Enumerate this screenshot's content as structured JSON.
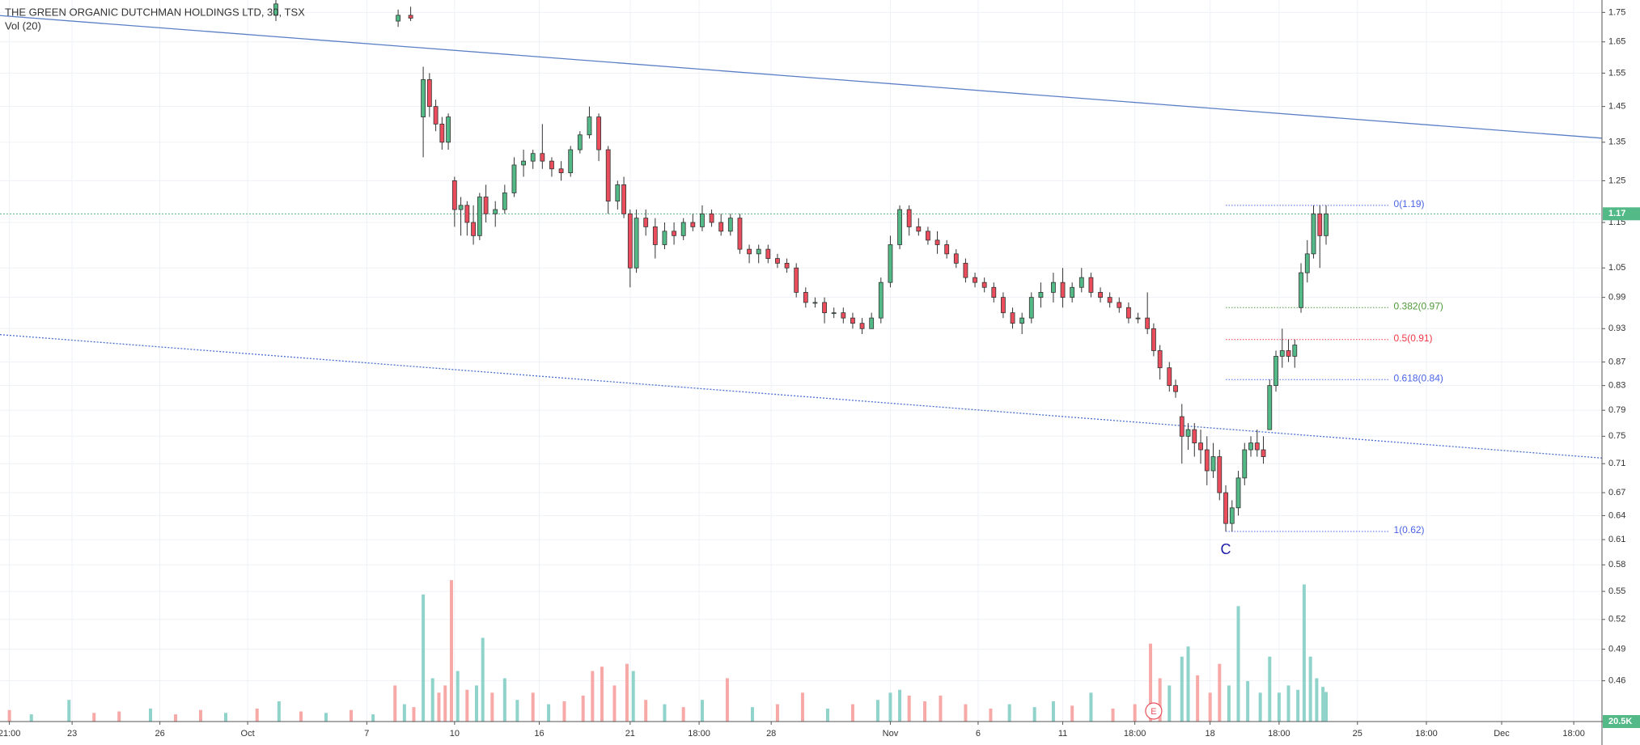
{
  "chart_data": {
    "type": "candlestick",
    "title": "THE GREEN ORGANIC DUTCHMAN HOLDINGS LTD, 30, TSX",
    "subtitle": "Vol (20)",
    "log_scale": true,
    "grid": true,
    "up_color": "#53b987",
    "down_color": "#eb4d5c",
    "ylim": [
      0.424,
      1.794
    ],
    "yticks": [
      1.75,
      1.65,
      1.55,
      1.45,
      1.35,
      1.25,
      1.15,
      1.05,
      0.99,
      0.93,
      0.87,
      0.83,
      0.79,
      0.75,
      0.71,
      0.67,
      0.64,
      0.61,
      0.58,
      0.55,
      0.52,
      0.49,
      0.46
    ],
    "xlim": [
      0,
      511
    ],
    "xticks": [
      {
        "value": 3,
        "label": "21:00"
      },
      {
        "value": 23,
        "label": "23"
      },
      {
        "value": 51,
        "label": "26"
      },
      {
        "value": 79,
        "label": "Oct"
      },
      {
        "value": 117,
        "label": "7"
      },
      {
        "value": 145,
        "label": "10"
      },
      {
        "value": 172,
        "label": "16"
      },
      {
        "value": 201,
        "label": "21"
      },
      {
        "value": 223,
        "label": "18:00"
      },
      {
        "value": 246,
        "label": "28"
      },
      {
        "value": 284,
        "label": "Nov"
      },
      {
        "value": 312,
        "label": "6"
      },
      {
        "value": 339,
        "label": "11"
      },
      {
        "value": 362,
        "label": "18:00"
      },
      {
        "value": 386,
        "label": "18"
      },
      {
        "value": 408,
        "label": "18:00"
      },
      {
        "value": 433,
        "label": "25"
      },
      {
        "value": 455,
        "label": "18:00"
      },
      {
        "value": 479,
        "label": "Dec"
      },
      {
        "value": 502,
        "label": "18:00"
      }
    ],
    "ohlc": [
      [
        88,
        1.74,
        1.8,
        1.72,
        1.78
      ],
      [
        127,
        1.72,
        1.76,
        1.7,
        1.74
      ],
      [
        131,
        1.74,
        1.77,
        1.72,
        1.73
      ],
      [
        135,
        1.42,
        1.57,
        1.31,
        1.53
      ],
      [
        137,
        1.53,
        1.55,
        1.42,
        1.45
      ],
      [
        139,
        1.45,
        1.47,
        1.38,
        1.4
      ],
      [
        141,
        1.4,
        1.42,
        1.33,
        1.35
      ],
      [
        143,
        1.35,
        1.43,
        1.33,
        1.42
      ],
      [
        145,
        1.25,
        1.26,
        1.14,
        1.18
      ],
      [
        147,
        1.18,
        1.21,
        1.12,
        1.19
      ],
      [
        149,
        1.19,
        1.2,
        1.12,
        1.15
      ],
      [
        151,
        1.15,
        1.19,
        1.1,
        1.12
      ],
      [
        153,
        1.12,
        1.22,
        1.11,
        1.21
      ],
      [
        155,
        1.21,
        1.24,
        1.15,
        1.17
      ],
      [
        158,
        1.17,
        1.2,
        1.14,
        1.18
      ],
      [
        161,
        1.18,
        1.24,
        1.17,
        1.22
      ],
      [
        164,
        1.22,
        1.31,
        1.21,
        1.29
      ],
      [
        167,
        1.29,
        1.33,
        1.26,
        1.3
      ],
      [
        170,
        1.3,
        1.33,
        1.28,
        1.32
      ],
      [
        173,
        1.32,
        1.4,
        1.28,
        1.3
      ],
      [
        176,
        1.3,
        1.31,
        1.26,
        1.28
      ],
      [
        179,
        1.28,
        1.3,
        1.25,
        1.27
      ],
      [
        182,
        1.27,
        1.34,
        1.26,
        1.33
      ],
      [
        185,
        1.33,
        1.38,
        1.32,
        1.37
      ],
      [
        188,
        1.37,
        1.45,
        1.36,
        1.42
      ],
      [
        191,
        1.42,
        1.43,
        1.3,
        1.33
      ],
      [
        194,
        1.33,
        1.34,
        1.17,
        1.2
      ],
      [
        197,
        1.2,
        1.25,
        1.18,
        1.24
      ],
      [
        199,
        1.24,
        1.26,
        1.16,
        1.17
      ],
      [
        201,
        1.17,
        1.18,
        1.01,
        1.05
      ],
      [
        203,
        1.05,
        1.18,
        1.04,
        1.16
      ],
      [
        206,
        1.16,
        1.18,
        1.12,
        1.14
      ],
      [
        209,
        1.14,
        1.16,
        1.07,
        1.1
      ],
      [
        212,
        1.1,
        1.15,
        1.09,
        1.13
      ],
      [
        215,
        1.13,
        1.15,
        1.1,
        1.12
      ],
      [
        218,
        1.12,
        1.16,
        1.11,
        1.15
      ],
      [
        221,
        1.15,
        1.17,
        1.13,
        1.14
      ],
      [
        224,
        1.14,
        1.19,
        1.13,
        1.17
      ],
      [
        227,
        1.17,
        1.18,
        1.14,
        1.15
      ],
      [
        230,
        1.15,
        1.17,
        1.12,
        1.13
      ],
      [
        233,
        1.13,
        1.17,
        1.12,
        1.16
      ],
      [
        236,
        1.16,
        1.17,
        1.08,
        1.09
      ],
      [
        239,
        1.09,
        1.1,
        1.06,
        1.08
      ],
      [
        242,
        1.08,
        1.1,
        1.06,
        1.09
      ],
      [
        245,
        1.09,
        1.1,
        1.06,
        1.07
      ],
      [
        248,
        1.07,
        1.08,
        1.05,
        1.06
      ],
      [
        251,
        1.06,
        1.07,
        1.04,
        1.05
      ],
      [
        254,
        1.05,
        1.06,
        0.99,
        1.0
      ],
      [
        257,
        1.0,
        1.01,
        0.97,
        0.98
      ],
      [
        260,
        0.98,
        0.99,
        0.97,
        0.98
      ],
      [
        263,
        0.98,
        0.99,
        0.94,
        0.96
      ],
      [
        266,
        0.96,
        0.97,
        0.95,
        0.96
      ],
      [
        269,
        0.96,
        0.97,
        0.94,
        0.95
      ],
      [
        272,
        0.95,
        0.96,
        0.93,
        0.94
      ],
      [
        275,
        0.94,
        0.95,
        0.92,
        0.93
      ],
      [
        278,
        0.93,
        0.96,
        0.93,
        0.95
      ],
      [
        281,
        0.95,
        1.03,
        0.94,
        1.02
      ],
      [
        284,
        1.02,
        1.12,
        1.01,
        1.1
      ],
      [
        287,
        1.1,
        1.19,
        1.09,
        1.18
      ],
      [
        290,
        1.18,
        1.19,
        1.12,
        1.14
      ],
      [
        293,
        1.14,
        1.16,
        1.12,
        1.13
      ],
      [
        296,
        1.13,
        1.14,
        1.1,
        1.11
      ],
      [
        299,
        1.11,
        1.13,
        1.08,
        1.1
      ],
      [
        302,
        1.1,
        1.11,
        1.07,
        1.08
      ],
      [
        305,
        1.08,
        1.09,
        1.05,
        1.06
      ],
      [
        308,
        1.06,
        1.07,
        1.02,
        1.03
      ],
      [
        311,
        1.03,
        1.04,
        1.01,
        1.02
      ],
      [
        314,
        1.02,
        1.03,
        1.0,
        1.01
      ],
      [
        317,
        1.01,
        1.02,
        0.98,
        0.99
      ],
      [
        320,
        0.99,
        1.0,
        0.95,
        0.96
      ],
      [
        323,
        0.96,
        0.97,
        0.93,
        0.94
      ],
      [
        326,
        0.94,
        0.96,
        0.92,
        0.95
      ],
      [
        329,
        0.95,
        1.0,
        0.94,
        0.99
      ],
      [
        332,
        0.99,
        1.02,
        0.97,
        1.0
      ],
      [
        336,
        1.0,
        1.04,
        0.98,
        1.02
      ],
      [
        339,
        1.02,
        1.05,
        0.97,
        0.99
      ],
      [
        342,
        0.99,
        1.02,
        0.98,
        1.01
      ],
      [
        345,
        1.01,
        1.05,
        1.0,
        1.03
      ],
      [
        348,
        1.03,
        1.04,
        0.99,
        1.0
      ],
      [
        351,
        1.0,
        1.01,
        0.98,
        0.99
      ],
      [
        354,
        0.99,
        1.0,
        0.97,
        0.98
      ],
      [
        357,
        0.98,
        0.99,
        0.96,
        0.97
      ],
      [
        360,
        0.97,
        0.98,
        0.94,
        0.95
      ],
      [
        363,
        0.95,
        0.96,
        0.94,
        0.95
      ],
      [
        366,
        0.95,
        1.0,
        0.92,
        0.93
      ],
      [
        368,
        0.93,
        0.94,
        0.88,
        0.89
      ],
      [
        370,
        0.89,
        0.9,
        0.84,
        0.86
      ],
      [
        373,
        0.86,
        0.87,
        0.82,
        0.83
      ],
      [
        375,
        0.83,
        0.84,
        0.81,
        0.82
      ],
      [
        377,
        0.78,
        0.8,
        0.71,
        0.75
      ],
      [
        379,
        0.75,
        0.77,
        0.73,
        0.76
      ],
      [
        381,
        0.76,
        0.77,
        0.72,
        0.74
      ],
      [
        383,
        0.74,
        0.76,
        0.71,
        0.73
      ],
      [
        385,
        0.73,
        0.75,
        0.68,
        0.7
      ],
      [
        387,
        0.7,
        0.74,
        0.69,
        0.72
      ],
      [
        389,
        0.72,
        0.73,
        0.66,
        0.67
      ],
      [
        391,
        0.67,
        0.68,
        0.62,
        0.63
      ],
      [
        393,
        0.63,
        0.66,
        0.62,
        0.65
      ],
      [
        395,
        0.65,
        0.7,
        0.64,
        0.69
      ],
      [
        397,
        0.69,
        0.74,
        0.68,
        0.73
      ],
      [
        399,
        0.73,
        0.75,
        0.72,
        0.74
      ],
      [
        401,
        0.74,
        0.76,
        0.72,
        0.73
      ],
      [
        403,
        0.73,
        0.75,
        0.71,
        0.72
      ],
      [
        405,
        0.76,
        0.84,
        0.76,
        0.83
      ],
      [
        407,
        0.83,
        0.89,
        0.82,
        0.88
      ],
      [
        409,
        0.88,
        0.93,
        0.86,
        0.89
      ],
      [
        411,
        0.89,
        0.91,
        0.87,
        0.88
      ],
      [
        413,
        0.88,
        0.91,
        0.86,
        0.9
      ],
      [
        415,
        0.97,
        1.06,
        0.96,
        1.04
      ],
      [
        417,
        1.04,
        1.11,
        1.02,
        1.08
      ],
      [
        419,
        1.08,
        1.19,
        1.07,
        1.17
      ],
      [
        421,
        1.17,
        1.19,
        1.05,
        1.12
      ],
      [
        423,
        1.12,
        1.19,
        1.1,
        1.17
      ]
    ],
    "volume_ylim": [
      0,
      100000
    ],
    "volume": [
      {
        "x": 3,
        "value": 8000,
        "color": "#f7a9a7"
      },
      {
        "x": 10,
        "value": 5000,
        "color": "#8fd3cb"
      },
      {
        "x": 22,
        "value": 15000,
        "color": "#8fd3cb"
      },
      {
        "x": 30,
        "value": 6000,
        "color": "#f7a9a7"
      },
      {
        "x": 38,
        "value": 7000,
        "color": "#f7a9a7"
      },
      {
        "x": 48,
        "value": 9000,
        "color": "#8fd3cb"
      },
      {
        "x": 56,
        "value": 5000,
        "color": "#f7a9a7"
      },
      {
        "x": 64,
        "value": 8000,
        "color": "#f7a9a7"
      },
      {
        "x": 72,
        "value": 6000,
        "color": "#8fd3cb"
      },
      {
        "x": 82,
        "value": 9000,
        "color": "#f7a9a7"
      },
      {
        "x": 89,
        "value": 14000,
        "color": "#8fd3cb"
      },
      {
        "x": 96,
        "value": 7000,
        "color": "#f7a9a7"
      },
      {
        "x": 104,
        "value": 6000,
        "color": "#8fd3cb"
      },
      {
        "x": 112,
        "value": 8000,
        "color": "#f7a9a7"
      },
      {
        "x": 119,
        "value": 5000,
        "color": "#8fd3cb"
      },
      {
        "x": 126,
        "value": 25000,
        "color": "#f7a9a7"
      },
      {
        "x": 129,
        "value": 12000,
        "color": "#8fd3cb"
      },
      {
        "x": 132,
        "value": 10000,
        "color": "#f7a9a7"
      },
      {
        "x": 135,
        "value": 88000,
        "color": "#8fd3cb"
      },
      {
        "x": 138,
        "value": 30000,
        "color": "#8fd3cb"
      },
      {
        "x": 140,
        "value": 20000,
        "color": "#f7a9a7"
      },
      {
        "x": 142,
        "value": 25000,
        "color": "#f7a9a7"
      },
      {
        "x": 144,
        "value": 98000,
        "color": "#f7a9a7"
      },
      {
        "x": 146,
        "value": 35000,
        "color": "#8fd3cb"
      },
      {
        "x": 149,
        "value": 22000,
        "color": "#f7a9a7"
      },
      {
        "x": 152,
        "value": 25000,
        "color": "#8fd3cb"
      },
      {
        "x": 154,
        "value": 58000,
        "color": "#8fd3cb"
      },
      {
        "x": 157,
        "value": 20000,
        "color": "#f7a9a7"
      },
      {
        "x": 161,
        "value": 30000,
        "color": "#8fd3cb"
      },
      {
        "x": 165,
        "value": 15000,
        "color": "#8fd3cb"
      },
      {
        "x": 170,
        "value": 20000,
        "color": "#f7a9a7"
      },
      {
        "x": 175,
        "value": 12000,
        "color": "#8fd3cb"
      },
      {
        "x": 180,
        "value": 14000,
        "color": "#f7a9a7"
      },
      {
        "x": 186,
        "value": 18000,
        "color": "#f7a9a7"
      },
      {
        "x": 189,
        "value": 35000,
        "color": "#f7a9a7"
      },
      {
        "x": 192,
        "value": 38000,
        "color": "#f7a9a7"
      },
      {
        "x": 196,
        "value": 25000,
        "color": "#f7a9a7"
      },
      {
        "x": 200,
        "value": 40000,
        "color": "#f7a9a7"
      },
      {
        "x": 202,
        "value": 35000,
        "color": "#8fd3cb"
      },
      {
        "x": 206,
        "value": 15000,
        "color": "#f7a9a7"
      },
      {
        "x": 212,
        "value": 12000,
        "color": "#8fd3cb"
      },
      {
        "x": 218,
        "value": 10000,
        "color": "#f7a9a7"
      },
      {
        "x": 224,
        "value": 15000,
        "color": "#8fd3cb"
      },
      {
        "x": 232,
        "value": 30000,
        "color": "#f7a9a7"
      },
      {
        "x": 240,
        "value": 10000,
        "color": "#8fd3cb"
      },
      {
        "x": 248,
        "value": 12000,
        "color": "#f7a9a7"
      },
      {
        "x": 256,
        "value": 20000,
        "color": "#f7a9a7"
      },
      {
        "x": 264,
        "value": 9000,
        "color": "#8fd3cb"
      },
      {
        "x": 272,
        "value": 12000,
        "color": "#f7a9a7"
      },
      {
        "x": 280,
        "value": 15000,
        "color": "#8fd3cb"
      },
      {
        "x": 284,
        "value": 20000,
        "color": "#8fd3cb"
      },
      {
        "x": 287,
        "value": 22000,
        "color": "#8fd3cb"
      },
      {
        "x": 290,
        "value": 18000,
        "color": "#f7a9a7"
      },
      {
        "x": 295,
        "value": 14000,
        "color": "#f7a9a7"
      },
      {
        "x": 300,
        "value": 18000,
        "color": "#f7a9a7"
      },
      {
        "x": 308,
        "value": 12000,
        "color": "#f7a9a7"
      },
      {
        "x": 316,
        "value": 9000,
        "color": "#f7a9a7"
      },
      {
        "x": 322,
        "value": 12000,
        "color": "#8fd3cb"
      },
      {
        "x": 330,
        "value": 10000,
        "color": "#8fd3cb"
      },
      {
        "x": 336,
        "value": 14000,
        "color": "#8fd3cb"
      },
      {
        "x": 342,
        "value": 11000,
        "color": "#f7a9a7"
      },
      {
        "x": 348,
        "value": 20000,
        "color": "#8fd3cb"
      },
      {
        "x": 355,
        "value": 9000,
        "color": "#f7a9a7"
      },
      {
        "x": 362,
        "value": 12000,
        "color": "#f7a9a7"
      },
      {
        "x": 367,
        "value": 54000,
        "color": "#f7a9a7"
      },
      {
        "x": 370,
        "value": 30000,
        "color": "#f7a9a7"
      },
      {
        "x": 373,
        "value": 25000,
        "color": "#8fd3cb"
      },
      {
        "x": 377,
        "value": 45000,
        "color": "#8fd3cb"
      },
      {
        "x": 379,
        "value": 52000,
        "color": "#8fd3cb"
      },
      {
        "x": 382,
        "value": 32000,
        "color": "#f7a9a7"
      },
      {
        "x": 386,
        "value": 20000,
        "color": "#f7a9a7"
      },
      {
        "x": 389,
        "value": 40000,
        "color": "#f7a9a7"
      },
      {
        "x": 392,
        "value": 25000,
        "color": "#8fd3cb"
      },
      {
        "x": 395,
        "value": 80000,
        "color": "#8fd3cb"
      },
      {
        "x": 398,
        "value": 28000,
        "color": "#8fd3cb"
      },
      {
        "x": 402,
        "value": 20000,
        "color": "#8fd3cb"
      },
      {
        "x": 405,
        "value": 45000,
        "color": "#8fd3cb"
      },
      {
        "x": 408,
        "value": 20000,
        "color": "#8fd3cb"
      },
      {
        "x": 411,
        "value": 25000,
        "color": "#8fd3cb"
      },
      {
        "x": 414,
        "value": 22000,
        "color": "#8fd3cb"
      },
      {
        "x": 416,
        "value": 95000,
        "color": "#8fd3cb"
      },
      {
        "x": 418,
        "value": 45000,
        "color": "#8fd3cb"
      },
      {
        "x": 420,
        "value": 30000,
        "color": "#8fd3cb"
      },
      {
        "x": 422,
        "value": 24000,
        "color": "#8fd3cb"
      },
      {
        "x": 423,
        "value": 20500,
        "color": "#8fd3cb"
      }
    ],
    "volume_label": "20.5K",
    "last_price": 1.17,
    "trendlines": [
      {
        "x": [
          0,
          511
        ],
        "y": [
          1.739,
          1.361
        ],
        "color": "#5b7fc7",
        "dashed": false
      },
      {
        "x": [
          0,
          511
        ],
        "y": [
          0.919,
          0.718
        ],
        "color": "#4a6fd0",
        "dashed": true
      }
    ],
    "fib_range": [
      391,
      443
    ],
    "fib": [
      {
        "label": "0(1.19)",
        "value": 1.19,
        "color": "#4b63e8"
      },
      {
        "label": "0.382(0.97)",
        "value": 0.97,
        "color": "#4f9a3a"
      },
      {
        "label": "0.5(0.91)",
        "value": 0.91,
        "color": "#f23645"
      },
      {
        "label": "0.618(0.84)",
        "value": 0.84,
        "color": "#4b63e8"
      },
      {
        "label": "1(0.62)",
        "value": 0.62,
        "color": "#4b63e8"
      }
    ],
    "wave_label": {
      "text": "C",
      "x": 391,
      "y": 0.597
    },
    "earnings_marker": {
      "label": "E",
      "x": 368
    }
  }
}
